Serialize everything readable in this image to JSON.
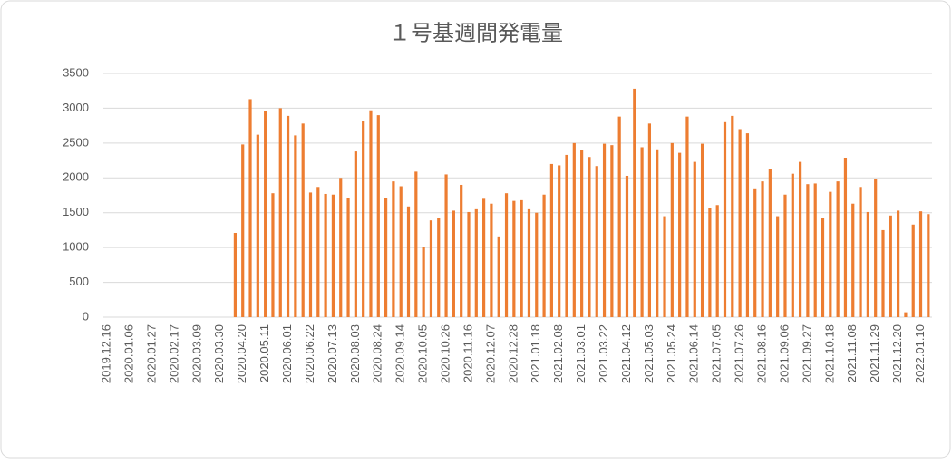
{
  "chart_data": {
    "type": "bar",
    "title": "１号基週間発電量",
    "color": "#ed7d31",
    "grid": true,
    "ylim": [
      0,
      3500
    ],
    "yticks": [
      0,
      500,
      1000,
      1500,
      2000,
      2500,
      3000,
      3500
    ],
    "categories": [
      "2019.12.16",
      null,
      null,
      "2020.01.06",
      null,
      null,
      "2020.01.27",
      null,
      null,
      "2020.02.17",
      null,
      null,
      "2020.03.09",
      null,
      null,
      "2020.03.30",
      null,
      null,
      "2020.04.20",
      null,
      null,
      "2020.05.11",
      null,
      null,
      "2020.06.01",
      null,
      null,
      "2020.06.22",
      null,
      null,
      "2020.07.13",
      null,
      null,
      "2020.08.03",
      null,
      null,
      "2020.08.24",
      null,
      null,
      "2020.09.14",
      null,
      null,
      "2020.10.05",
      null,
      null,
      "2020.10.26",
      null,
      null,
      "2020.11.16",
      null,
      null,
      "2020.12.07",
      null,
      null,
      "2020.12.28",
      null,
      null,
      "2021.01.18",
      null,
      null,
      "2021.02.08",
      null,
      null,
      "2021.03.01",
      null,
      null,
      "2021.03.22",
      null,
      null,
      "2021.04.12",
      null,
      null,
      "2021.05.03",
      null,
      null,
      "2021.05.24",
      null,
      null,
      "2021.06.14",
      null,
      null,
      "2021.07.05",
      null,
      null,
      "2021.07.26",
      null,
      null,
      "2021.08.16",
      null,
      null,
      "2021.09.06",
      null,
      null,
      "2021.09.27",
      null,
      null,
      "2021.10.18",
      null,
      null,
      "2021.11.08",
      null,
      null,
      "2021.11.29",
      null,
      null,
      "2021.12.20",
      null,
      null,
      "2022.01.10",
      null
    ],
    "values": [
      0,
      0,
      0,
      0,
      0,
      0,
      0,
      0,
      0,
      0,
      0,
      0,
      0,
      0,
      0,
      0,
      0,
      1210,
      2480,
      3130,
      2620,
      2960,
      1780,
      3000,
      2890,
      2610,
      2780,
      1790,
      1870,
      1770,
      1760,
      2000,
      1710,
      2380,
      2820,
      2970,
      2900,
      1710,
      1950,
      1880,
      1590,
      2090,
      1010,
      1390,
      1420,
      2050,
      1530,
      1900,
      1510,
      1550,
      1700,
      1630,
      1160,
      1780,
      1670,
      1680,
      1550,
      1500,
      1760,
      2200,
      2180,
      2330,
      2500,
      2400,
      2300,
      2170,
      2490,
      2470,
      2880,
      2030,
      3280,
      2440,
      2780,
      2410,
      1450,
      2500,
      2360,
      2880,
      2230,
      2490,
      1570,
      1610,
      2800,
      2890,
      2700,
      2640,
      1850,
      1950,
      2130,
      1450,
      1760,
      2060,
      2230,
      1910,
      1920,
      1430,
      1800,
      1950,
      2290,
      1630,
      1870,
      1510,
      1990,
      1250,
      1460,
      1530,
      70,
      1330,
      1520,
      1480
    ]
  }
}
